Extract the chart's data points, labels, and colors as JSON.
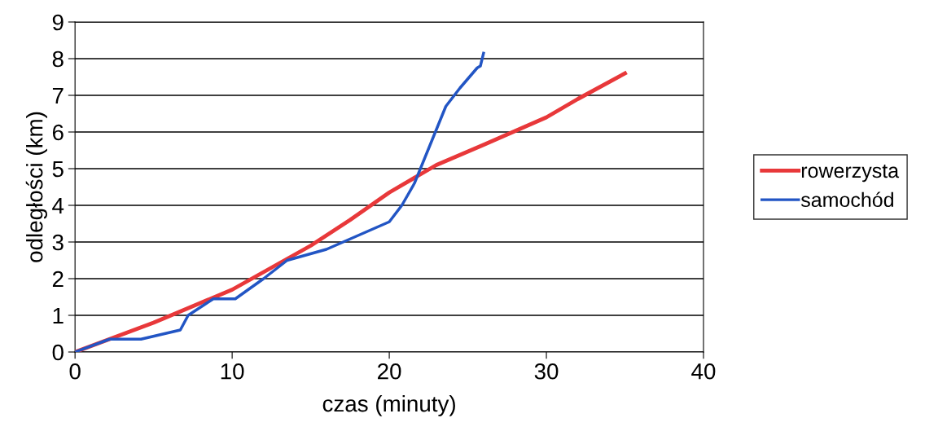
{
  "chart_data": {
    "type": "line",
    "xlabel": "czas (minuty)",
    "ylabel": "odległości (km)",
    "xlim": [
      0,
      40
    ],
    "xticks": [
      0,
      10,
      20,
      30,
      40
    ],
    "ylim": [
      0,
      9
    ],
    "yticks": [
      0,
      1,
      2,
      3,
      4,
      5,
      6,
      7,
      8,
      9
    ],
    "grid": "y",
    "legend": "right",
    "marker": "none",
    "line_style": "solid",
    "series": [
      {
        "name": "rowerzysta",
        "color": "#e8383a",
        "x": [
          0,
          2.5,
          5,
          7.5,
          10,
          12.5,
          15,
          17.5,
          20,
          23,
          26,
          30,
          32,
          35
        ],
        "values": [
          0,
          0.4,
          0.8,
          1.25,
          1.7,
          2.3,
          2.9,
          3.6,
          4.35,
          5.1,
          5.65,
          6.4,
          6.9,
          7.6
        ]
      },
      {
        "name": "samochód",
        "color": "#2255c4",
        "x": [
          0,
          2.2,
          4.2,
          6.7,
          7.2,
          8.8,
          10.2,
          12,
          13.5,
          16,
          20,
          20.8,
          21.6,
          23.6,
          24.5,
          25.6,
          25.8,
          26
        ],
        "values": [
          0,
          0.35,
          0.35,
          0.6,
          1.0,
          1.45,
          1.45,
          2.0,
          2.5,
          2.8,
          3.55,
          4.0,
          4.6,
          6.7,
          7.2,
          7.75,
          7.8,
          8.15
        ]
      }
    ]
  }
}
